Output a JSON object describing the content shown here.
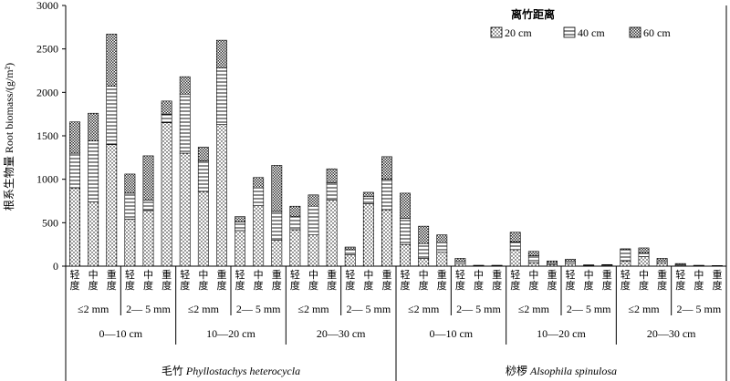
{
  "chart_data": {
    "type": "bar",
    "stacked": true,
    "ylabel": "根系生物量 Root biomass/(g/m²)",
    "ylim": [
      0,
      3000
    ],
    "yticks": [
      0,
      500,
      1000,
      1500,
      2000,
      2500,
      3000
    ],
    "legend": {
      "title": "离竹距离",
      "placement": "top-right",
      "entries": [
        "20 cm",
        "40 cm",
        "60 cm"
      ]
    },
    "series_patterns": [
      "dots",
      "hlines",
      "crosshatch"
    ],
    "levels": [
      "轻度",
      "中度",
      "重度"
    ],
    "diameters": [
      "≤2 mm",
      "2— 5 mm"
    ],
    "depths": [
      "0—10 cm",
      "10—20 cm",
      "20—30 cm"
    ],
    "species": [
      {
        "name_cn": "毛竹",
        "name_latin": "Phyllostachys heterocycla",
        "bars": [
          [
            900,
            400,
            360
          ],
          [
            740,
            700,
            320
          ],
          [
            1400,
            670,
            600
          ],
          [
            540,
            300,
            220
          ],
          [
            640,
            120,
            510
          ],
          [
            1650,
            100,
            150
          ],
          [
            1300,
            680,
            200
          ],
          [
            860,
            350,
            160
          ],
          [
            1630,
            650,
            320
          ],
          [
            410,
            100,
            60
          ],
          [
            700,
            200,
            120
          ],
          [
            300,
            330,
            530
          ],
          [
            420,
            150,
            120
          ],
          [
            360,
            330,
            130
          ],
          [
            760,
            200,
            160
          ],
          [
            130,
            60,
            30
          ],
          [
            720,
            80,
            50
          ],
          [
            650,
            350,
            260
          ]
        ]
      },
      {
        "name_cn": "桫椤",
        "name_latin": "Alsophila spinulosa",
        "bars": [
          [
            250,
            300,
            290
          ],
          [
            90,
            170,
            200
          ],
          [
            160,
            110,
            90
          ],
          [
            30,
            20,
            40
          ],
          [
            5,
            3,
            2
          ],
          [
            5,
            3,
            2
          ],
          [
            190,
            90,
            110
          ],
          [
            40,
            80,
            50
          ],
          [
            20,
            20,
            20
          ],
          [
            30,
            20,
            30
          ],
          [
            5,
            5,
            5
          ],
          [
            8,
            6,
            4
          ],
          [
            60,
            130,
            10
          ],
          [
            110,
            40,
            60
          ],
          [
            40,
            20,
            30
          ],
          [
            10,
            10,
            10
          ],
          [
            4,
            3,
            3
          ],
          [
            3,
            2,
            2
          ]
        ]
      }
    ]
  }
}
